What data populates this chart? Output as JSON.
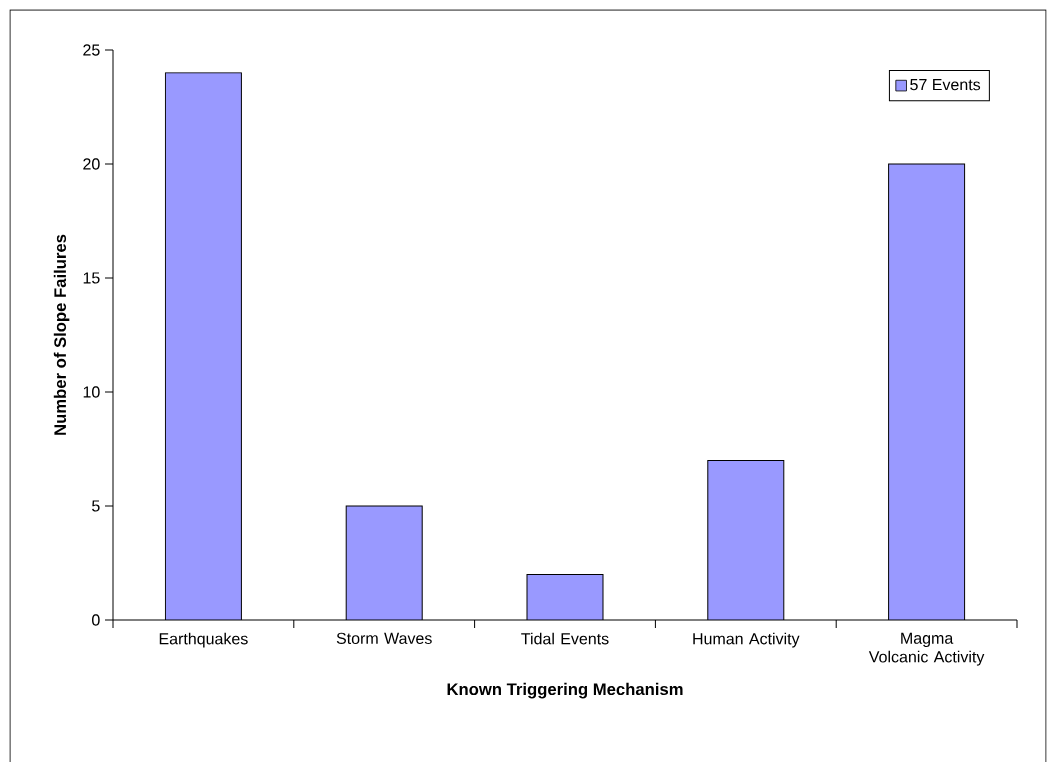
{
  "chart_data": {
    "type": "bar",
    "xlabel": "Known Triggering Mechanism",
    "ylabel": "Number of Slope Failures",
    "categories": [
      "Earthquakes",
      "Storm Waves",
      "Tidal Events",
      "Human Activity",
      "Magma Volcanic Activity"
    ],
    "series": [
      {
        "name": "57 Events",
        "color": "#9999ff",
        "values": [
          24,
          5,
          2,
          7,
          20
        ]
      }
    ],
    "ylim": [
      0,
      25
    ],
    "yticks": [
      0,
      5,
      10,
      15,
      20,
      25
    ],
    "grid": false,
    "legend": "top right"
  }
}
